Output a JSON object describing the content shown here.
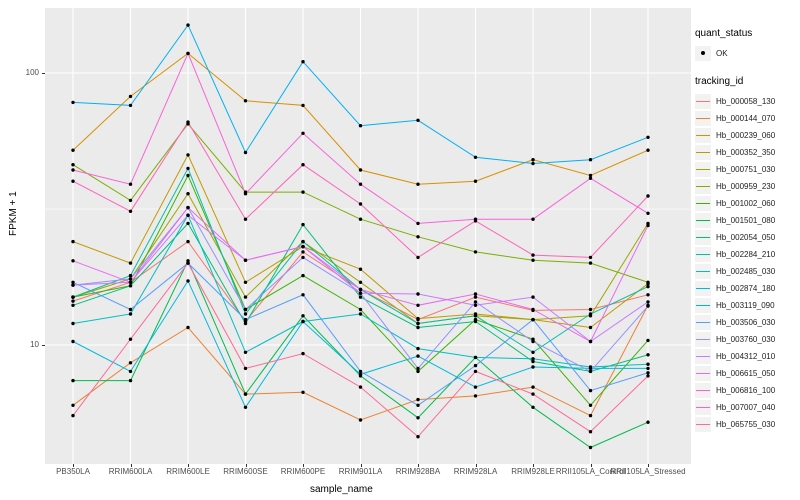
{
  "y_axis": {
    "label": "FPKM + 1",
    "ticks": [
      "100",
      "10"
    ]
  },
  "x_axis": {
    "label": "sample_name"
  },
  "legend": {
    "quant_title": "quant_status",
    "quant_ok_label": "OK",
    "tracking_title": "tracking_id"
  },
  "panel_bg": "#EBEBEB",
  "chart_data": {
    "type": "line",
    "x": [
      "PB350LA",
      "RRIM600LA",
      "RRIM600LE",
      "RRIM600SE",
      "RRIM600PE",
      "RRIM901LA",
      "RRIM928BA",
      "RRIM928LA",
      "RRIM928LE",
      "RRII105LA_Control",
      "RRII105LA_Stressed"
    ],
    "xlabel": "sample_name",
    "ylabel": "FPKM + 1",
    "yscale": "log10",
    "ylim": [
      3.6,
      175
    ],
    "yticks": [
      10,
      100
    ],
    "yminor": [
      31.6
    ],
    "grid": "white-on-gray",
    "legend_position": "right",
    "point_shape": "black-dot (quant_status OK)",
    "series": [
      {
        "name": "Hb_000058_130",
        "color": "#F8766D",
        "values": [
          14.5,
          17,
          24,
          12.2,
          22,
          16,
          12.4,
          15,
          13.4,
          13.5,
          15.3
        ]
      },
      {
        "name": "Hb_000144_070",
        "color": "#EA8331",
        "values": [
          6.0,
          8.6,
          11.6,
          6.6,
          6.7,
          5.3,
          6.3,
          6.5,
          7.0,
          5.5,
          14
        ]
      },
      {
        "name": "Hb_000239_060",
        "color": "#D89000",
        "values": [
          52,
          82,
          118,
          79,
          76,
          44,
          39,
          40,
          48,
          42,
          52
        ]
      },
      {
        "name": "Hb_000352_350",
        "color": "#C09B00",
        "values": [
          24,
          20,
          50,
          17,
          23,
          19,
          12.5,
          13,
          12.4,
          11.6,
          16.8
        ]
      },
      {
        "name": "Hb_000751_030",
        "color": "#A3A500",
        "values": [
          15,
          17.5,
          36,
          15,
          24,
          17,
          12,
          12.8,
          12.4,
          12.8,
          28
        ]
      },
      {
        "name": "Hb_000959_230",
        "color": "#7CAE00",
        "values": [
          46,
          34,
          65,
          36.5,
          36.5,
          29,
          25,
          22,
          20.5,
          20,
          17
        ]
      },
      {
        "name": "Hb_001002_060",
        "color": "#39B600",
        "values": [
          15,
          16.5,
          42,
          13.5,
          18,
          13.5,
          8,
          12.4,
          10.5,
          6,
          10.4
        ]
      },
      {
        "name": "Hb_001501_080",
        "color": "#00BB4E",
        "values": [
          7.4,
          7.4,
          20.4,
          6.6,
          12.8,
          7.7,
          5.4,
          9,
          5.9,
          4.2,
          5.2
        ]
      },
      {
        "name": "Hb_002054_050",
        "color": "#00BF7D",
        "values": [
          14,
          16.5,
          28,
          12,
          27.7,
          15,
          11.6,
          12.2,
          8.7,
          8.0,
          9.2
        ]
      },
      {
        "name": "Hb_002284_210",
        "color": "#00C1A3",
        "values": [
          15,
          18,
          44.6,
          13,
          24,
          16,
          12,
          12.8,
          9.4,
          13,
          16.4
        ]
      },
      {
        "name": "Hb_002485_030",
        "color": "#00BFC4",
        "values": [
          12,
          13,
          30,
          9.4,
          12.2,
          13,
          9.7,
          9,
          8.9,
          8.3,
          8.5
        ]
      },
      {
        "name": "Hb_002874_180",
        "color": "#00BADE",
        "values": [
          10.3,
          8.0,
          17.2,
          5.9,
          12.2,
          7.8,
          9.1,
          7,
          8.3,
          8.2,
          8.2
        ]
      },
      {
        "name": "Hb_003119_090",
        "color": "#00B0F6",
        "values": [
          78,
          76,
          150,
          51,
          110,
          64,
          67,
          49,
          46.5,
          48,
          58
        ]
      },
      {
        "name": "Hb_003506_030",
        "color": "#529EFF",
        "values": [
          17,
          13.5,
          20,
          12.4,
          15.3,
          8,
          6.0,
          8.4,
          12.4,
          6.8,
          7.9
        ]
      },
      {
        "name": "Hb_003760_030",
        "color": "#9590FF",
        "values": [
          16.6,
          17.5,
          32,
          13.5,
          21,
          15.5,
          8.2,
          14.4,
          10.3,
          8,
          13.9
        ]
      },
      {
        "name": "Hb_004312_010",
        "color": "#C77CFF",
        "values": [
          16.6,
          17,
          30,
          20.5,
          23,
          15.5,
          15.4,
          14,
          15,
          10.3,
          14.4
        ]
      },
      {
        "name": "Hb_006615_050",
        "color": "#E76BF3",
        "values": [
          20.4,
          17,
          32,
          20.5,
          23,
          16,
          14,
          15.4,
          13.5,
          10.3,
          27.5
        ]
      },
      {
        "name": "Hb_006816_100",
        "color": "#FA62DB",
        "values": [
          44,
          39,
          118,
          36,
          60,
          39,
          28,
          29,
          29,
          41,
          30.5
        ]
      },
      {
        "name": "Hb_007007_040",
        "color": "#FF62BC",
        "values": [
          40,
          31,
          66,
          29,
          46,
          33,
          21,
          28.6,
          21.4,
          21,
          35.3
        ]
      },
      {
        "name": "Hb_065755_030",
        "color": "#FF6A98",
        "values": [
          5.5,
          10.5,
          20,
          8.2,
          9.3,
          7,
          4.6,
          8,
          6.6,
          4.8,
          7.7
        ]
      }
    ]
  }
}
